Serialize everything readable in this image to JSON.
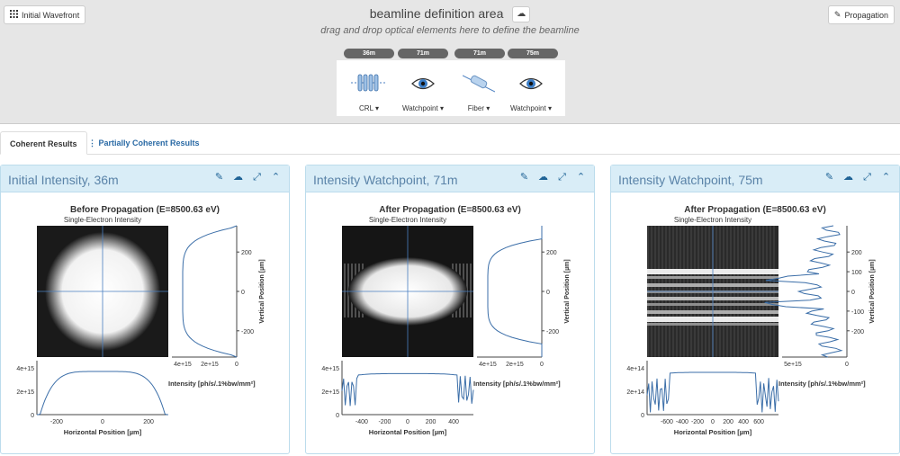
{
  "toolbar": {
    "initial_wavefront": "Initial Wavefront",
    "propagation": "Propagation",
    "beamline_title": "beamline definition area",
    "beamline_hint": "drag and drop optical elements here to define the beamline"
  },
  "beamline": [
    {
      "position": "36m",
      "label": "CRL",
      "icon": "crl-lens-icon"
    },
    {
      "position": "71m",
      "label": "Watchpoint",
      "icon": "eye-icon"
    },
    {
      "position": "71m",
      "label": "Fiber",
      "icon": "fiber-icon"
    },
    {
      "position": "75m",
      "label": "Watchpoint",
      "icon": "eye-icon"
    }
  ],
  "tabs": {
    "coherent": "Coherent Results",
    "partial": "Partially Coherent Results"
  },
  "panels": [
    {
      "title": "Initial Intensity, 36m",
      "plot_title": "Before Propagation (E=8500.63 eV)",
      "plot_subtitle": "Single-Electron Intensity",
      "xlabel": "Horizontal Position [µm]",
      "ylabel": "Vertical Position [µm]",
      "intensity_label": "Intensity [ph/s/.1%bw/mm²]",
      "x_ticks": [
        "-200",
        "0",
        "200"
      ],
      "y_ticks": [
        "200",
        "0",
        "-200"
      ],
      "bottom_ticks": [
        "4e+15",
        "2e+15",
        "0"
      ],
      "side_ticks": [
        "4e+15",
        "2e+15",
        "0"
      ]
    },
    {
      "title": "Intensity Watchpoint, 71m",
      "plot_title": "After Propagation (E=8500.63 eV)",
      "plot_subtitle": "Single-Electron Intensity",
      "xlabel": "Horizontal Position [µm]",
      "ylabel": "Vertical Position [µm]",
      "intensity_label": "Intensity [ph/s/.1%bw/mm²]",
      "x_ticks": [
        "-400",
        "-200",
        "0",
        "200",
        "400"
      ],
      "y_ticks": [
        "200",
        "0",
        "-200"
      ],
      "bottom_ticks": [
        "4e+15",
        "2e+15",
        "0"
      ],
      "side_ticks": [
        "4e+15",
        "2e+15",
        "0"
      ]
    },
    {
      "title": "Intensity Watchpoint, 75m",
      "plot_title": "After Propagation (E=8500.63 eV)",
      "plot_subtitle": "Single-Electron Intensity",
      "xlabel": "Horizontal Position [µm]",
      "ylabel": "Vertical Position [µm]",
      "intensity_label": "Intensity [ph/s/.1%bw/mm²]",
      "x_ticks": [
        "-600",
        "-400",
        "-200",
        "0",
        "200",
        "400",
        "600"
      ],
      "y_ticks": [
        "200",
        "100",
        "0",
        "-100",
        "-200"
      ],
      "bottom_ticks": [
        "4e+14",
        "2e+14",
        "0"
      ],
      "side_ticks": [
        "5e+15",
        "0"
      ]
    }
  ],
  "colors": {
    "accent": "#1f6396",
    "panel_header": "#d9edf7",
    "curve": "#3b6ea8"
  }
}
